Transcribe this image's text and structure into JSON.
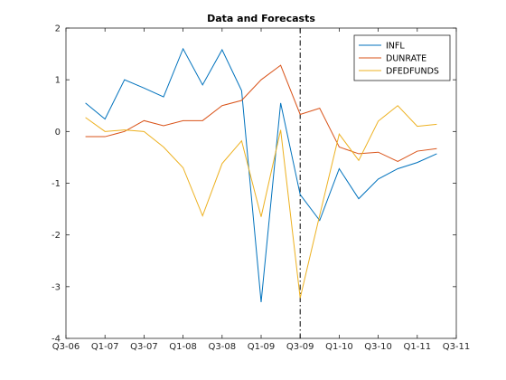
{
  "chart_data": {
    "type": "line",
    "title": "Data and Forecasts",
    "xlabel": "",
    "ylabel": "",
    "x_ticks": [
      "Q3-06",
      "Q1-07",
      "Q3-07",
      "Q1-08",
      "Q3-08",
      "Q1-09",
      "Q3-09",
      "Q1-10",
      "Q3-10",
      "Q1-11",
      "Q3-11"
    ],
    "x_tick_positions": [
      0,
      2,
      4,
      6,
      8,
      10,
      12,
      14,
      16,
      18,
      20
    ],
    "xlim": [
      0,
      20
    ],
    "ylim": [
      -4,
      2
    ],
    "y_ticks": [
      -4,
      -3,
      -2,
      -1,
      0,
      1,
      2
    ],
    "forecast_start": 12,
    "grid": false,
    "legend_position": "top-right",
    "x": [
      1,
      2,
      3,
      4,
      5,
      6,
      7,
      8,
      9,
      10,
      11,
      12,
      13,
      14,
      15,
      16,
      17,
      18,
      19
    ],
    "series": [
      {
        "name": "INFL",
        "color": "#0072bd",
        "values": [
          0.55,
          0.24,
          1.0,
          0.84,
          0.67,
          1.6,
          0.9,
          1.58,
          0.79,
          -3.3,
          0.55,
          -1.22,
          -1.72,
          -0.72,
          -1.3,
          -0.92,
          -0.72,
          -0.6,
          -0.43
        ]
      },
      {
        "name": "DUNRATE",
        "color": "#d95319",
        "values": [
          -0.1,
          -0.1,
          0.0,
          0.21,
          0.11,
          0.21,
          0.21,
          0.5,
          0.6,
          1.0,
          1.28,
          0.33,
          0.45,
          -0.3,
          -0.43,
          -0.4,
          -0.58,
          -0.38,
          -0.33
        ]
      },
      {
        "name": "DFEDFUNDS",
        "color": "#edb120",
        "values": [
          0.27,
          0.0,
          0.03,
          0.0,
          -0.3,
          -0.7,
          -1.63,
          -0.62,
          -0.18,
          -1.65,
          0.03,
          -3.22,
          -1.62,
          -0.05,
          -0.56,
          0.2,
          0.5,
          0.1,
          0.14
        ]
      }
    ]
  }
}
